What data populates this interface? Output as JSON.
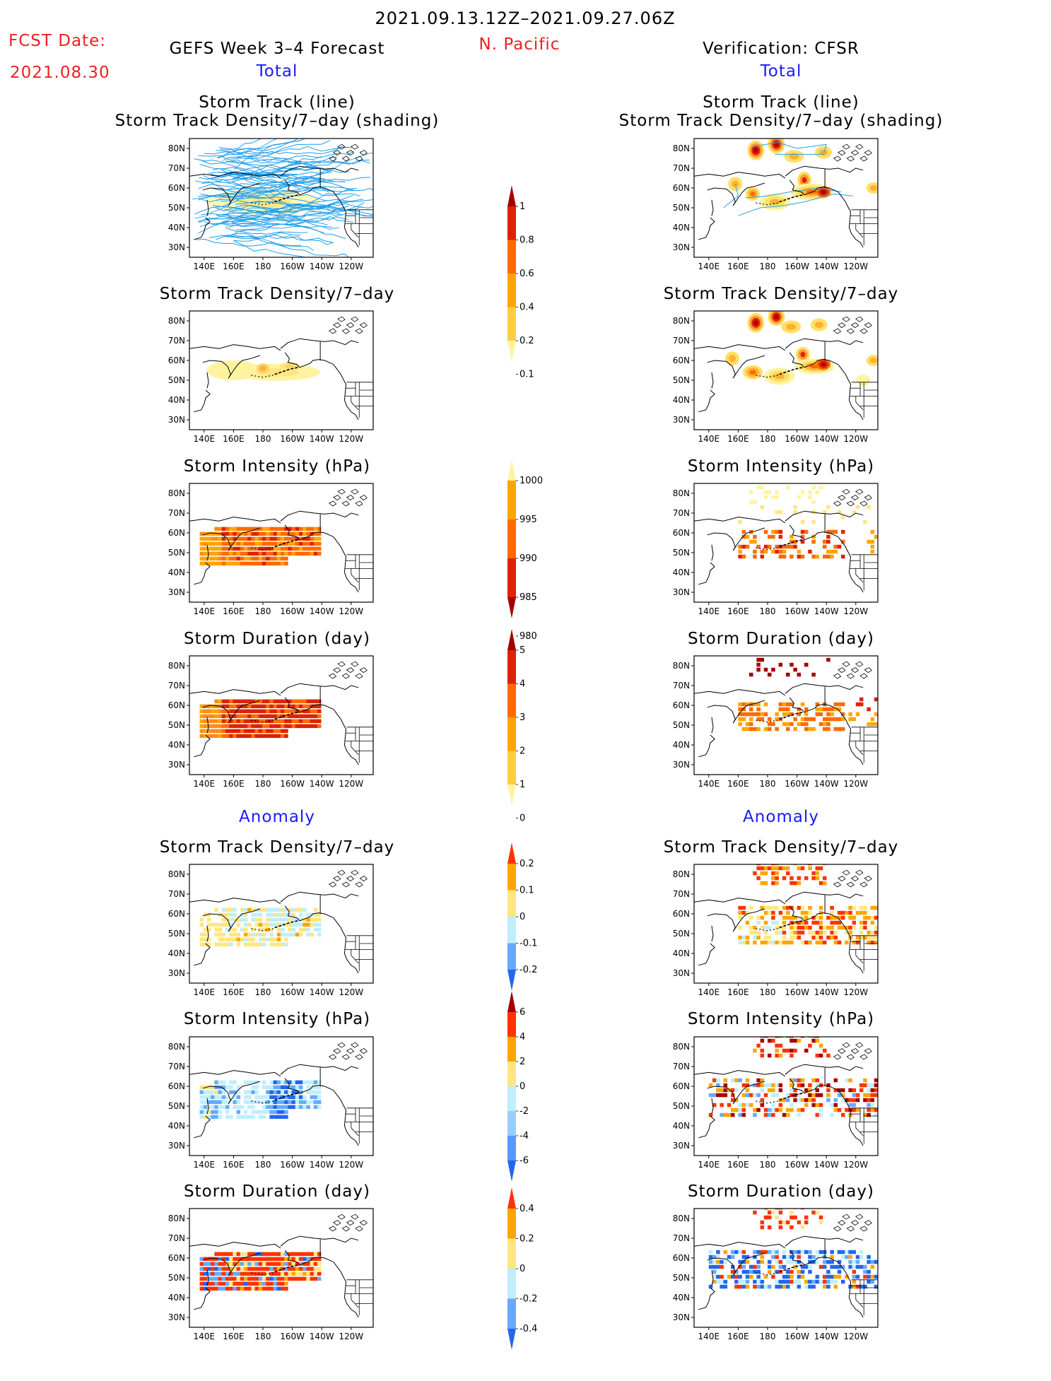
{
  "header": {
    "period": "2021.09.13.12Z–2021.09.27.06Z",
    "fcst_label": "FCST Date:",
    "fcst_date": "2021.08.30",
    "forecast_title": "GEFS Week 3–4 Forecast",
    "region": "N. Pacific",
    "verification_title": "Verification: CFSR"
  },
  "sections": {
    "total_left": "Total",
    "total_right": "Total",
    "anomaly_left": "Anomaly",
    "anomaly_right": "Anomaly"
  },
  "panel_titles": {
    "track_line": "Storm Track (line)",
    "track_shading": "Storm Track Density/7–day (shading)",
    "density": "Storm Track Density/7–day",
    "intensity": "Storm Intensity (hPa)",
    "duration": "Storm Duration (day)"
  },
  "axes": {
    "lat_labels": [
      "80N",
      "70N",
      "60N",
      "50N",
      "40N",
      "30N"
    ],
    "lon_labels": [
      "140E",
      "160E",
      "180",
      "160W",
      "140W",
      "120W"
    ]
  },
  "colorbars": {
    "density_total": {
      "labels": [
        "1",
        "0.8",
        "0.6",
        "0.4",
        "0.2",
        "0.1"
      ],
      "colors": [
        "#a50000",
        "#dd2200",
        "#ff6a00",
        "#ffa500",
        "#ffcc44",
        "#fff3a0"
      ]
    },
    "intensity_total": {
      "labels": [
        "1000",
        "995",
        "990",
        "985",
        "980"
      ],
      "colors": [
        "#fff3a0",
        "#ffa500",
        "#ff6a00",
        "#dd2200",
        "#a50000"
      ]
    },
    "duration_total": {
      "labels": [
        "5",
        "4",
        "3",
        "2",
        "1",
        "0"
      ],
      "colors": [
        "#a50000",
        "#dd2200",
        "#ff6a00",
        "#ffa500",
        "#ffcc44",
        "#fff3a0"
      ]
    },
    "density_anom": {
      "labels": [
        "0.2",
        "0.1",
        "0",
        "-0.1",
        "-0.2"
      ],
      "colors": [
        "#ff3300",
        "#ffa500",
        "#ffe680",
        "#bfeeff",
        "#66aaff",
        "#2266ee"
      ]
    },
    "intensity_anom": {
      "labels": [
        "6",
        "4",
        "2",
        "0",
        "-2",
        "-4",
        "-6"
      ],
      "colors": [
        "#a50000",
        "#ff3300",
        "#ffa500",
        "#ffe680",
        "#bfeeff",
        "#99ccff",
        "#5599ff",
        "#2266ee"
      ]
    },
    "duration_anom": {
      "labels": [
        "0.4",
        "0.2",
        "0",
        "-0.2",
        "-0.4"
      ],
      "colors": [
        "#ff3300",
        "#ffa500",
        "#ffe680",
        "#bfeeff",
        "#66aaff",
        "#2266ee"
      ]
    }
  }
}
